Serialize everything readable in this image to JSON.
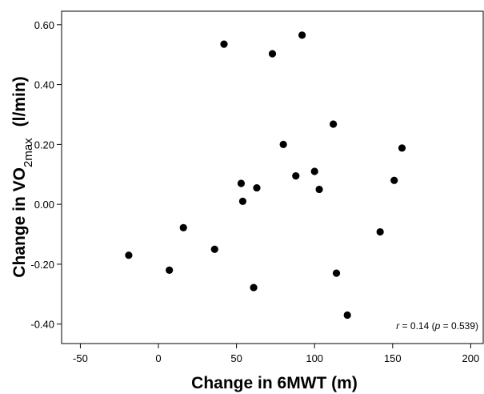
{
  "chart_data": {
    "type": "scatter",
    "xlabel": "Change in 6MWT (m)",
    "ylabel": {
      "prefix": "Change in VO",
      "sub": "2max",
      "unit": "(l/min)"
    },
    "xlim": [
      -62,
      208
    ],
    "ylim": [
      -0.465,
      0.645
    ],
    "xticks": [
      -50,
      0,
      50,
      100,
      150,
      200
    ],
    "xtick_labels": [
      "-50",
      "0",
      "50",
      "100",
      "150",
      "200"
    ],
    "yticks": [
      0.6,
      0.4,
      0.2,
      0.0,
      -0.2,
      -0.4
    ],
    "ytick_labels": [
      "0.60",
      "0.40",
      "0.20",
      "0.00",
      "-0.20",
      "-0.40"
    ],
    "annotation": {
      "r_symbol": "r",
      "r_text": " = 0.14 (",
      "p_symbol": "p",
      "p_text": " = 0.539)"
    },
    "marker_color": "#000000",
    "grid": false,
    "points": [
      {
        "x": 42,
        "y": 0.535
      },
      {
        "x": 73,
        "y": 0.503
      },
      {
        "x": 92,
        "y": 0.565
      },
      {
        "x": 112,
        "y": 0.268
      },
      {
        "x": 80,
        "y": 0.2
      },
      {
        "x": 156,
        "y": 0.188
      },
      {
        "x": 100,
        "y": 0.11
      },
      {
        "x": 88,
        "y": 0.095
      },
      {
        "x": 151,
        "y": 0.08
      },
      {
        "x": 53,
        "y": 0.07
      },
      {
        "x": 63,
        "y": 0.055
      },
      {
        "x": 103,
        "y": 0.05
      },
      {
        "x": 54,
        "y": 0.01
      },
      {
        "x": 16,
        "y": -0.078
      },
      {
        "x": 142,
        "y": -0.092
      },
      {
        "x": 36,
        "y": -0.15
      },
      {
        "x": -19,
        "y": -0.17
      },
      {
        "x": 7,
        "y": -0.22
      },
      {
        "x": 114,
        "y": -0.23
      },
      {
        "x": 61,
        "y": -0.278
      },
      {
        "x": 121,
        "y": -0.37
      }
    ]
  }
}
